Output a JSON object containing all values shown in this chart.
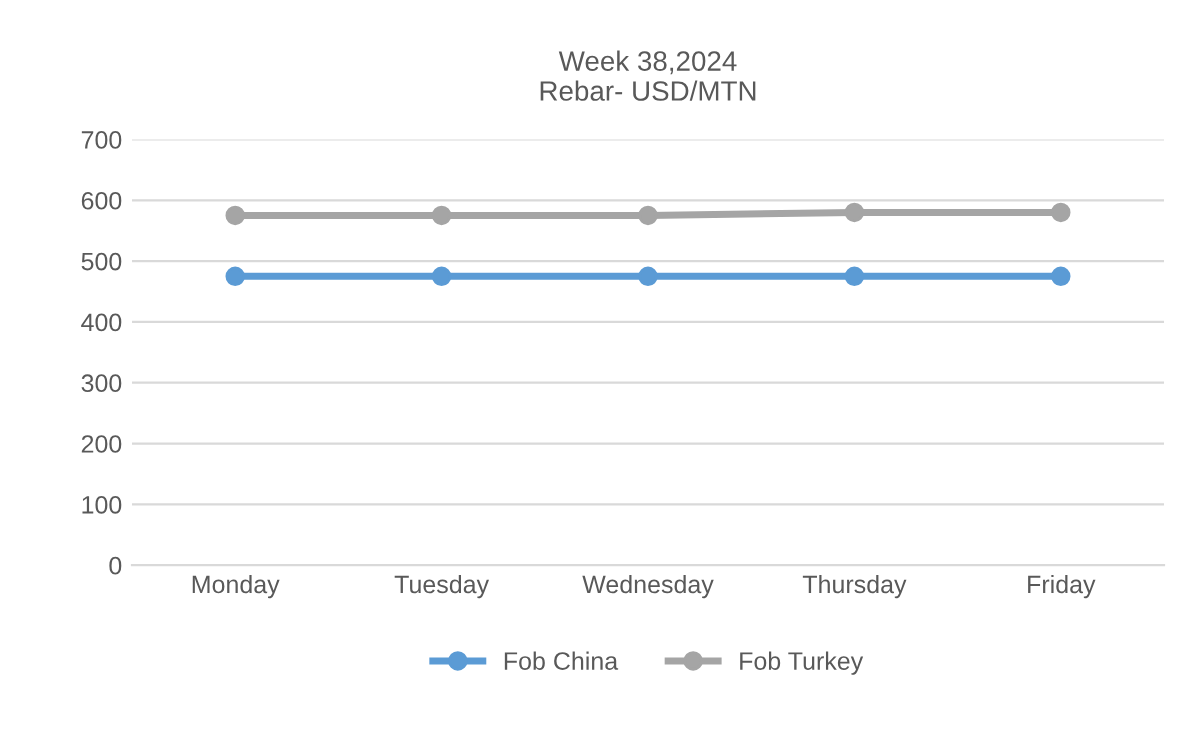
{
  "chart_data": {
    "type": "line",
    "title": "Week 38,2024\nRebar- USD/MTN",
    "categories": [
      "Monday",
      "Tuesday",
      "Wednesday",
      "Thursday",
      "Friday"
    ],
    "series": [
      {
        "name": "Fob China",
        "color": "#5b9bd5",
        "values": [
          475,
          475,
          475,
          475,
          475
        ]
      },
      {
        "name": "Fob Turkey",
        "color": "#a5a5a5",
        "values": [
          575,
          575,
          575,
          580,
          580
        ]
      }
    ],
    "ylim": [
      0,
      700
    ],
    "yticks": [
      0,
      100,
      200,
      300,
      400,
      500,
      600,
      700
    ],
    "grid": "y",
    "legend": "bottom",
    "marker": "circle",
    "line_style": "solid"
  }
}
